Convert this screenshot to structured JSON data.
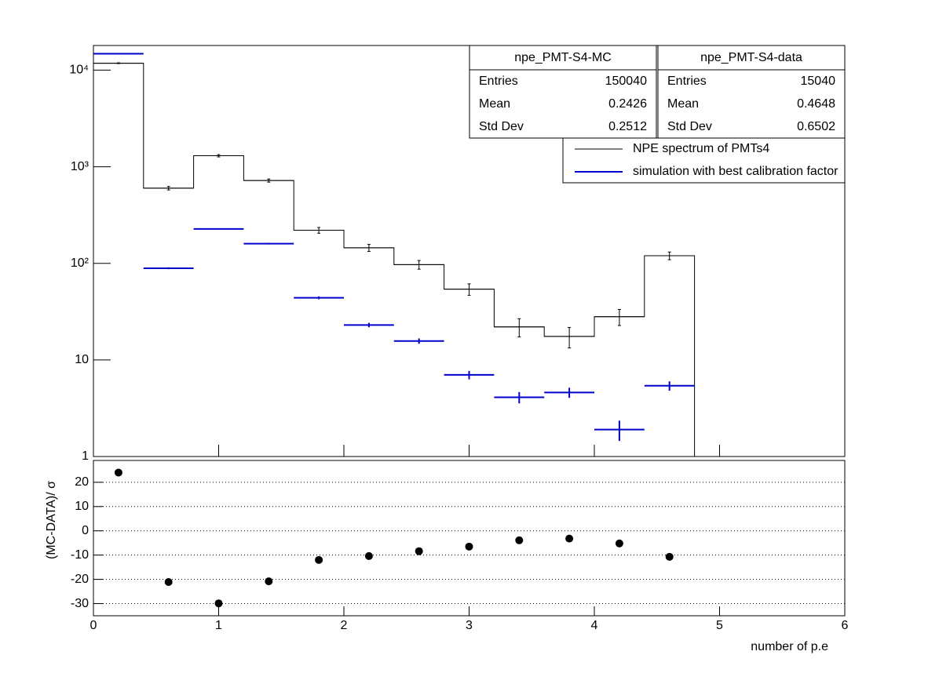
{
  "chart_data": [
    {
      "type": "histogram",
      "log_y": true,
      "bins": [
        0,
        0.4,
        0.8,
        1.2,
        1.6,
        2.0,
        2.4,
        2.8,
        3.2,
        3.6,
        4.0,
        4.4,
        4.8
      ],
      "xlim": [
        0,
        6
      ],
      "ylim": [
        1,
        18000
      ],
      "yticks": [
        1,
        10,
        {
          "value": 100,
          "label": "10²"
        },
        {
          "value": 1000,
          "label": "10³"
        },
        {
          "value": 10000,
          "label": "10⁴"
        }
      ],
      "series": [
        {
          "name": "NPE spectrum of PMTs4",
          "color": "#000000",
          "draw": "step",
          "values": [
            11800,
            600,
            1300,
            720,
            220,
            145,
            97,
            54,
            22,
            17.5,
            28,
            120
          ],
          "errors": [
            109,
            25,
            36,
            27,
            15,
            12,
            10,
            7.3,
            4.7,
            4.2,
            5.3,
            11
          ]
        },
        {
          "name": "simulation with best calibration factor",
          "color": "#0000cc",
          "draw": "errorbar",
          "values": [
            14800,
            89,
            227,
            160,
            44,
            23,
            15.7,
            7.0,
            4.1,
            4.6,
            1.9,
            5.4
          ],
          "errors": [
            60,
            2,
            3,
            3,
            1.5,
            1.2,
            1,
            0.7,
            0.55,
            0.55,
            0.45,
            0.6
          ]
        }
      ],
      "stats": [
        {
          "title": "npe_PMT-S4-MC",
          "color": "#0000ff",
          "rows": [
            {
              "label": "Entries",
              "value": 150040
            },
            {
              "label": "Mean",
              "value": 0.2426
            },
            {
              "label": "Std Dev",
              "value": 0.2512
            }
          ]
        },
        {
          "title": "npe_PMT-S4-data",
          "color": "#000000",
          "rows": [
            {
              "label": "Entries",
              "value": 15040
            },
            {
              "label": "Mean",
              "value": 0.4648
            },
            {
              "label": "Std Dev",
              "value": 0.6502
            }
          ]
        }
      ]
    },
    {
      "type": "scatter",
      "y_label": "(MC-DATA)/ σ",
      "x_label": "number of p.e",
      "xlim": [
        0,
        6
      ],
      "xticks": [
        0,
        1,
        2,
        3,
        4,
        5,
        6
      ],
      "ylim": [
        -35,
        29
      ],
      "yticks": [
        -30,
        -20,
        -10,
        0,
        10,
        20
      ],
      "grid": true,
      "color": "#000000",
      "x": [
        0.2,
        0.6,
        1.0,
        1.4,
        1.8,
        2.2,
        2.6,
        3.0,
        3.4,
        3.8,
        4.2,
        4.6
      ],
      "values": [
        24,
        -21.1,
        -29.9,
        -20.8,
        -12,
        -10.4,
        -8.4,
        -6.5,
        -3.9,
        -3.2,
        -5.2,
        -10.7
      ]
    }
  ]
}
